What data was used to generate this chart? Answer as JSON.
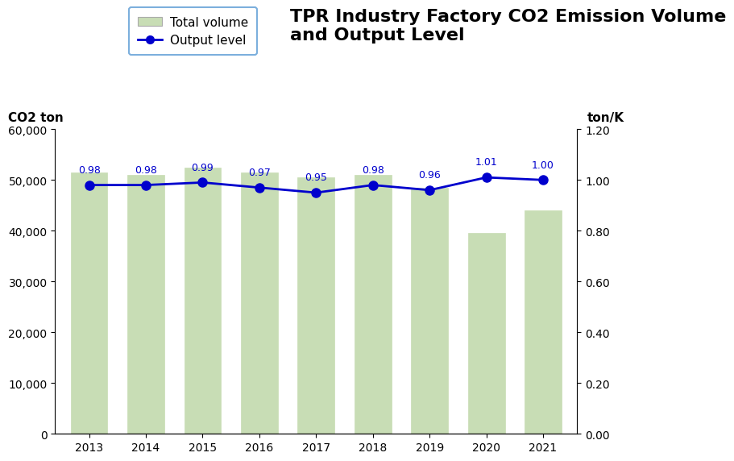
{
  "years": [
    2013,
    2014,
    2015,
    2016,
    2017,
    2018,
    2019,
    2020,
    2021
  ],
  "bar_values": [
    51500,
    51000,
    52500,
    51500,
    50500,
    51000,
    48500,
    39500,
    44000
  ],
  "line_values": [
    0.98,
    0.98,
    0.99,
    0.97,
    0.95,
    0.98,
    0.96,
    1.01,
    1.0
  ],
  "bar_color": "#c8ddb5",
  "bar_edgecolor": "#c8ddb5",
  "line_color": "#0000cd",
  "marker_color": "#0000cd",
  "title": "TPR Industry Factory CO2 Emission Volume\nand Output Level",
  "ylabel_left": "CO2 ton",
  "ylabel_right": "ton/K",
  "ylim_left": [
    0,
    60000
  ],
  "ylim_right": [
    0.0,
    1.2
  ],
  "yticks_left": [
    0,
    10000,
    20000,
    30000,
    40000,
    50000,
    60000
  ],
  "yticks_right": [
    0.0,
    0.2,
    0.4,
    0.6,
    0.8,
    1.0,
    1.2
  ],
  "legend_label_bar": "Total volume",
  "legend_label_line": "Output level",
  "background_color": "#ffffff",
  "title_fontsize": 16,
  "label_fontsize": 11,
  "tick_fontsize": 10,
  "annotation_fontsize": 9
}
